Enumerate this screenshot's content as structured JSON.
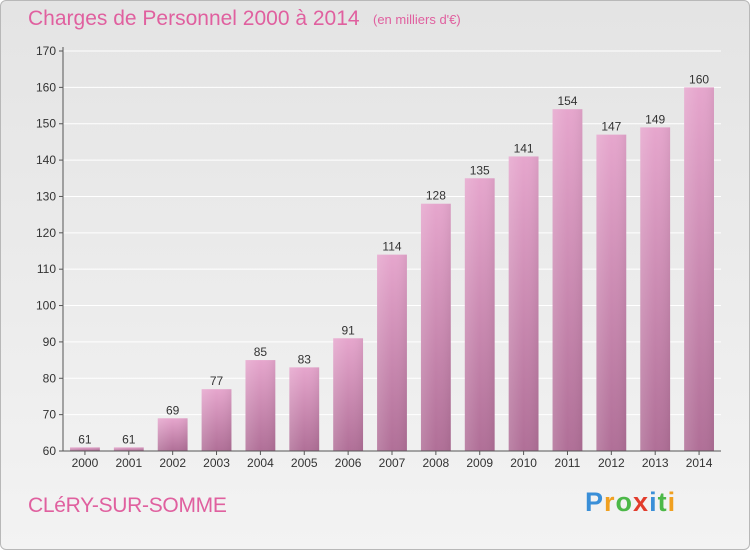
{
  "header": {
    "title": "Charges de Personnel 2000 à 2014",
    "subtitle": "(en milliers d'€)"
  },
  "footer": {
    "city": "CLéRY-SUR-SOMME",
    "logo_letters": [
      {
        "char": "P",
        "color": "#3a8fd8"
      },
      {
        "char": "r",
        "color": "#f0a020"
      },
      {
        "char": "o",
        "color": "#4cb848"
      },
      {
        "char": "x",
        "color": "#e23c2c"
      },
      {
        "char": "i",
        "color": "#3a8fd8"
      },
      {
        "char": "t",
        "color": "#4cb848"
      },
      {
        "char": "i",
        "color": "#f0a020"
      }
    ]
  },
  "chart_data": {
    "type": "bar",
    "title": "Charges de Personnel 2000 à 2014",
    "subtitle": "(en milliers d'€)",
    "xlabel": "",
    "ylabel": "",
    "categories": [
      "2000",
      "2001",
      "2002",
      "2003",
      "2004",
      "2005",
      "2006",
      "2007",
      "2008",
      "2009",
      "2010",
      "2011",
      "2012",
      "2013",
      "2014"
    ],
    "values": [
      61,
      61,
      69,
      77,
      85,
      83,
      91,
      114,
      128,
      135,
      141,
      154,
      147,
      149,
      160
    ],
    "ylim": [
      60,
      170
    ],
    "yticks": [
      60,
      70,
      80,
      90,
      100,
      110,
      120,
      130,
      140,
      150,
      160,
      170
    ],
    "grid": true,
    "legend": "none",
    "colors": {
      "bar_top": "#e6a6cd",
      "bar_bottom": "#b06f97",
      "grid": "#ffffff",
      "axis": "#555555"
    }
  }
}
